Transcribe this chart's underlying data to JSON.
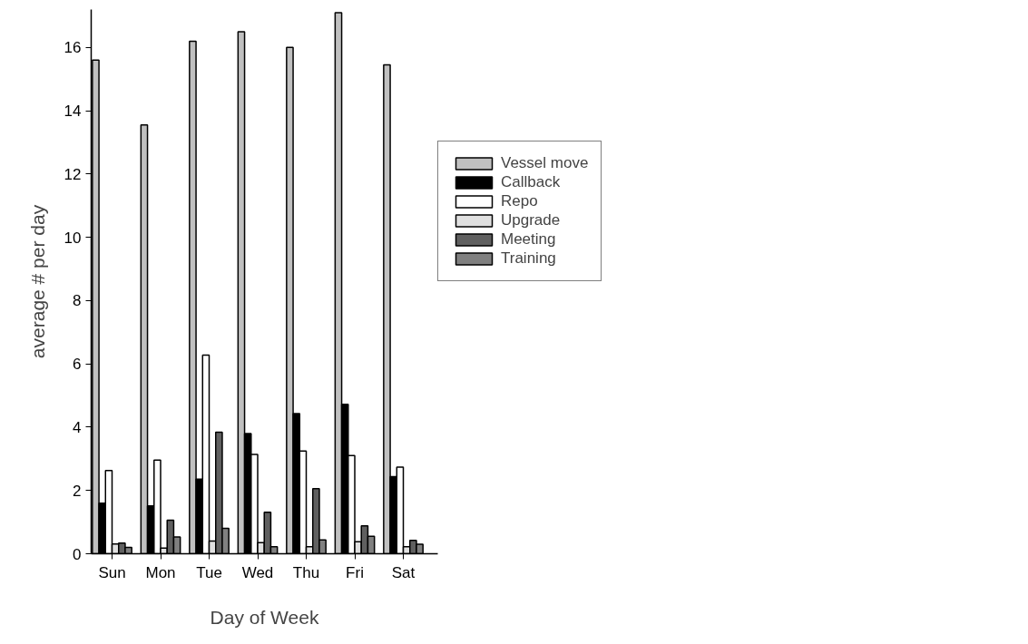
{
  "chart_data": {
    "type": "bar",
    "xlabel": "Day of Week",
    "ylabel": "average # per day",
    "categories": [
      "Sun",
      "Mon",
      "Tue",
      "Wed",
      "Thu",
      "Fri",
      "Sat"
    ],
    "series": [
      {
        "name": "Vessel move",
        "color": "#c0c0c0",
        "values": [
          15.6,
          13.55,
          16.2,
          16.5,
          16.0,
          17.1,
          15.45
        ]
      },
      {
        "name": "Callback",
        "color": "#000000",
        "values": [
          1.6,
          1.51,
          2.36,
          3.8,
          4.43,
          4.72,
          2.44
        ]
      },
      {
        "name": "Repo",
        "color": "#ffffff",
        "values": [
          2.63,
          2.96,
          6.28,
          3.14,
          3.25,
          3.1,
          2.74
        ]
      },
      {
        "name": "Upgrade",
        "color": "#e0e0e0",
        "values": [
          0.31,
          0.18,
          0.4,
          0.35,
          0.22,
          0.38,
          0.22
        ]
      },
      {
        "name": "Meeting",
        "color": "#606060",
        "values": [
          0.34,
          1.06,
          3.84,
          1.31,
          2.06,
          0.88,
          0.42
        ]
      },
      {
        "name": "Training",
        "color": "#808080",
        "values": [
          0.2,
          0.53,
          0.8,
          0.22,
          0.44,
          0.55,
          0.3
        ]
      }
    ],
    "ylim": [
      0,
      17.2
    ],
    "yticks": [
      0,
      2,
      4,
      6,
      8,
      10,
      12,
      14,
      16
    ],
    "grid": false,
    "legend": "right"
  }
}
